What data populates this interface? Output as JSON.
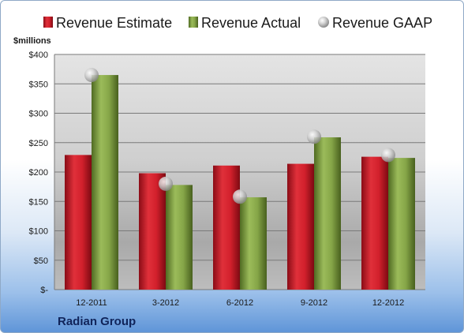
{
  "company": "Radian Group",
  "unit_label": "$millions",
  "colors": {
    "estimate": "#c8102e",
    "actual": "#7a9a3a",
    "gaap": "#c0c0c0"
  },
  "chart_data": {
    "type": "bar",
    "categories": [
      "12-2011",
      "3-2012",
      "6-2012",
      "9-2012",
      "12-2012"
    ],
    "series": [
      {
        "name": "Revenue Estimate",
        "values": [
          229,
          198,
          211,
          214,
          226
        ]
      },
      {
        "name": "Revenue Actual",
        "values": [
          365,
          178,
          157,
          259,
          224
        ]
      },
      {
        "name": "Revenue GAAP",
        "values": [
          365,
          180,
          158,
          260,
          229
        ]
      }
    ],
    "ylim": [
      0,
      400
    ],
    "yticks": [
      0,
      50,
      100,
      150,
      200,
      250,
      300,
      350,
      400
    ],
    "ytick_labels": [
      "$-",
      "$50",
      "$100",
      "$150",
      "$200",
      "$250",
      "$300",
      "$350",
      "$400"
    ],
    "legend": "top",
    "grid": true
  }
}
